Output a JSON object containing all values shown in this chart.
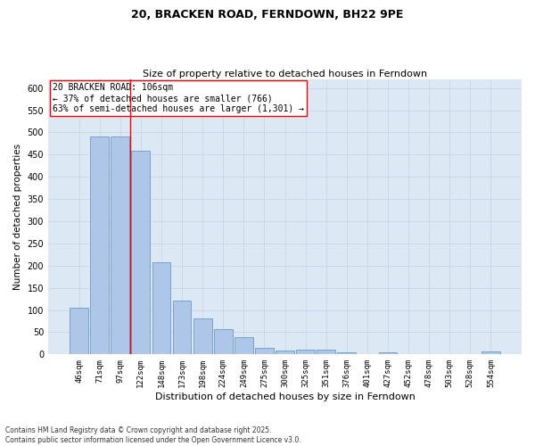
{
  "title": "20, BRACKEN ROAD, FERNDOWN, BH22 9PE",
  "subtitle": "Size of property relative to detached houses in Ferndown",
  "xlabel": "Distribution of detached houses by size in Ferndown",
  "ylabel": "Number of detached properties",
  "categories": [
    "46sqm",
    "71sqm",
    "97sqm",
    "122sqm",
    "148sqm",
    "173sqm",
    "198sqm",
    "224sqm",
    "249sqm",
    "275sqm",
    "300sqm",
    "325sqm",
    "351sqm",
    "376sqm",
    "401sqm",
    "427sqm",
    "452sqm",
    "478sqm",
    "503sqm",
    "528sqm",
    "554sqm"
  ],
  "values": [
    105,
    490,
    490,
    458,
    207,
    122,
    82,
    57,
    38,
    14,
    8,
    10,
    10,
    4,
    0,
    5,
    0,
    0,
    0,
    0,
    6
  ],
  "bar_color": "#aec6e8",
  "bar_edge_color": "#5a8fc2",
  "grid_color": "#c8d8e8",
  "background_color": "#dce9f5",
  "annotation_box_text": "20 BRACKEN ROAD: 106sqm\n← 37% of detached houses are smaller (766)\n63% of semi-detached houses are larger (1,301) →",
  "red_line_x": 2.5,
  "footer": "Contains HM Land Registry data © Crown copyright and database right 2025.\nContains public sector information licensed under the Open Government Licence v3.0.",
  "ylim": [
    0,
    620
  ],
  "yticks": [
    0,
    50,
    100,
    150,
    200,
    250,
    300,
    350,
    400,
    450,
    500,
    550,
    600
  ]
}
